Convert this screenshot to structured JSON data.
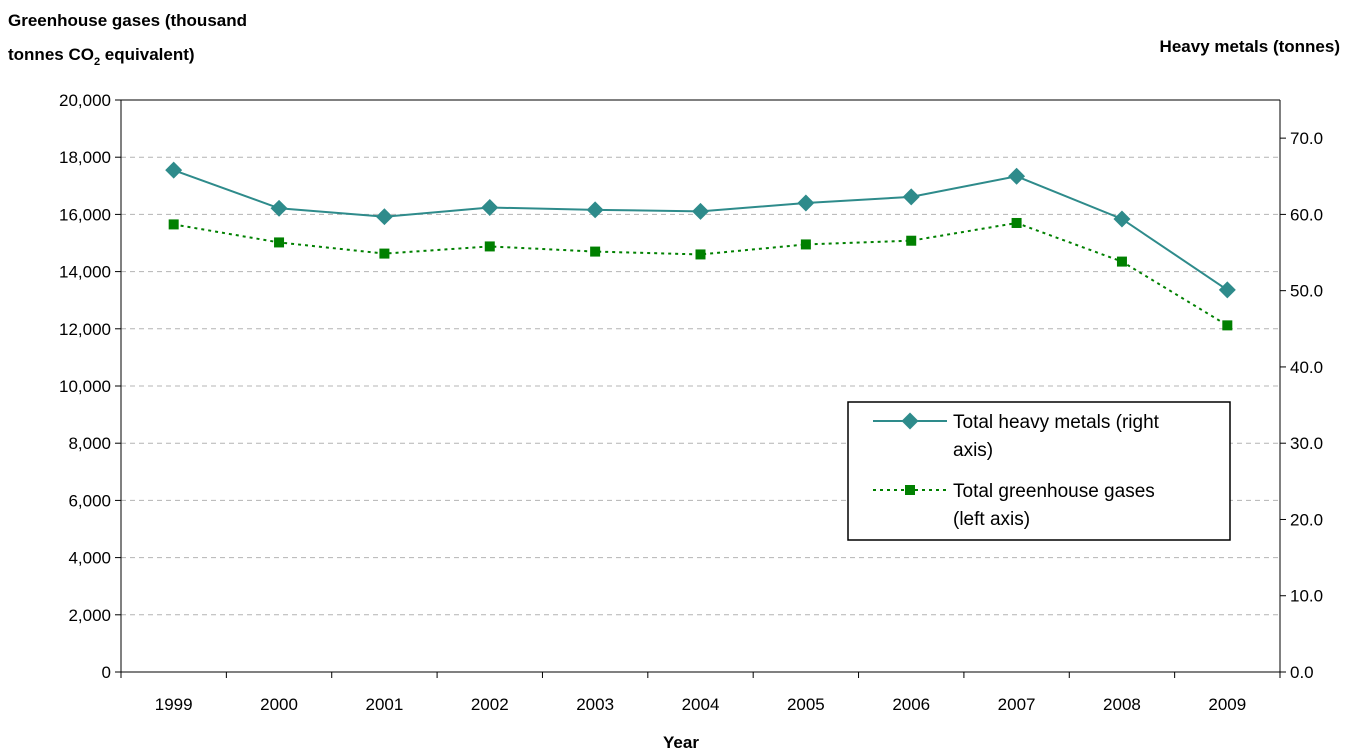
{
  "chart_data": {
    "type": "line",
    "left_axis_title_line1": "Greenhouse gases (thousand",
    "left_axis_title_line2_pre": "tonnes CO",
    "left_axis_title_sub": "2",
    "left_axis_title_line2_post": " equivalent)",
    "right_axis_title": "Heavy metals (tonnes)",
    "xlabel": "Year",
    "categories": [
      "1999",
      "2000",
      "2001",
      "2002",
      "2003",
      "2004",
      "2005",
      "2006",
      "2007",
      "2008",
      "2009"
    ],
    "y_left": {
      "min": 0,
      "max": 20000,
      "step": 2000,
      "tick_labels": [
        "0",
        "2,000",
        "4,000",
        "6,000",
        "8,000",
        "10,000",
        "12,000",
        "14,000",
        "16,000",
        "18,000",
        "20,000"
      ]
    },
    "y_right": {
      "min": 0,
      "max": 75,
      "step": 10,
      "tick_labels": [
        "0.0",
        "10.0",
        "20.0",
        "30.0",
        "40.0",
        "50.0",
        "60.0",
        "70.0"
      ]
    },
    "grid": "horizontal-dashed",
    "series": [
      {
        "name": "Total heavy metals (right axis)",
        "legend_line1": "Total heavy metals (right",
        "legend_line2": "axis)",
        "axis": "right",
        "color": "#2e8b8b",
        "marker": "diamond",
        "line_style": "solid",
        "values": [
          65.8,
          60.8,
          59.7,
          60.9,
          60.6,
          60.4,
          61.5,
          62.3,
          65.0,
          59.4,
          50.1
        ]
      },
      {
        "name": "Total greenhouse gases (left axis)",
        "legend_line1": "Total greenhouse gases",
        "legend_line2": "(left axis)",
        "axis": "left",
        "color": "#008000",
        "marker": "square",
        "line_style": "dotted",
        "values": [
          15650,
          15020,
          14630,
          14880,
          14700,
          14600,
          14950,
          15080,
          15700,
          14350,
          12120
        ]
      }
    ],
    "legend_position": "center-right"
  }
}
